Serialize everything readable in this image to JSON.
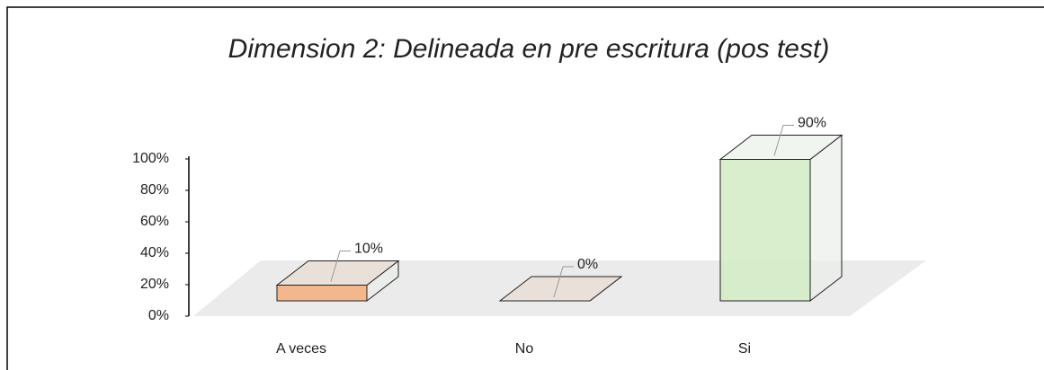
{
  "chart_data": {
    "type": "bar3d",
    "title": "Dimension 2: Delineada en pre escritura (pos test)",
    "categories": [
      "A veces",
      "No",
      "Si"
    ],
    "values": [
      10,
      0,
      90
    ],
    "value_labels": [
      "10%",
      "0%",
      "90%"
    ],
    "colors": [
      "#f4b183",
      "#e8ddd6",
      "#d5ecc6"
    ],
    "ylim": [
      0,
      100
    ],
    "yticks": [
      {
        "value": 0,
        "label": "0%"
      },
      {
        "value": 20,
        "label": "20%"
      },
      {
        "value": 40,
        "label": "40%"
      },
      {
        "value": 60,
        "label": "60%"
      },
      {
        "value": 80,
        "label": "80%"
      },
      {
        "value": 100,
        "label": "100%"
      }
    ],
    "grid": false
  }
}
